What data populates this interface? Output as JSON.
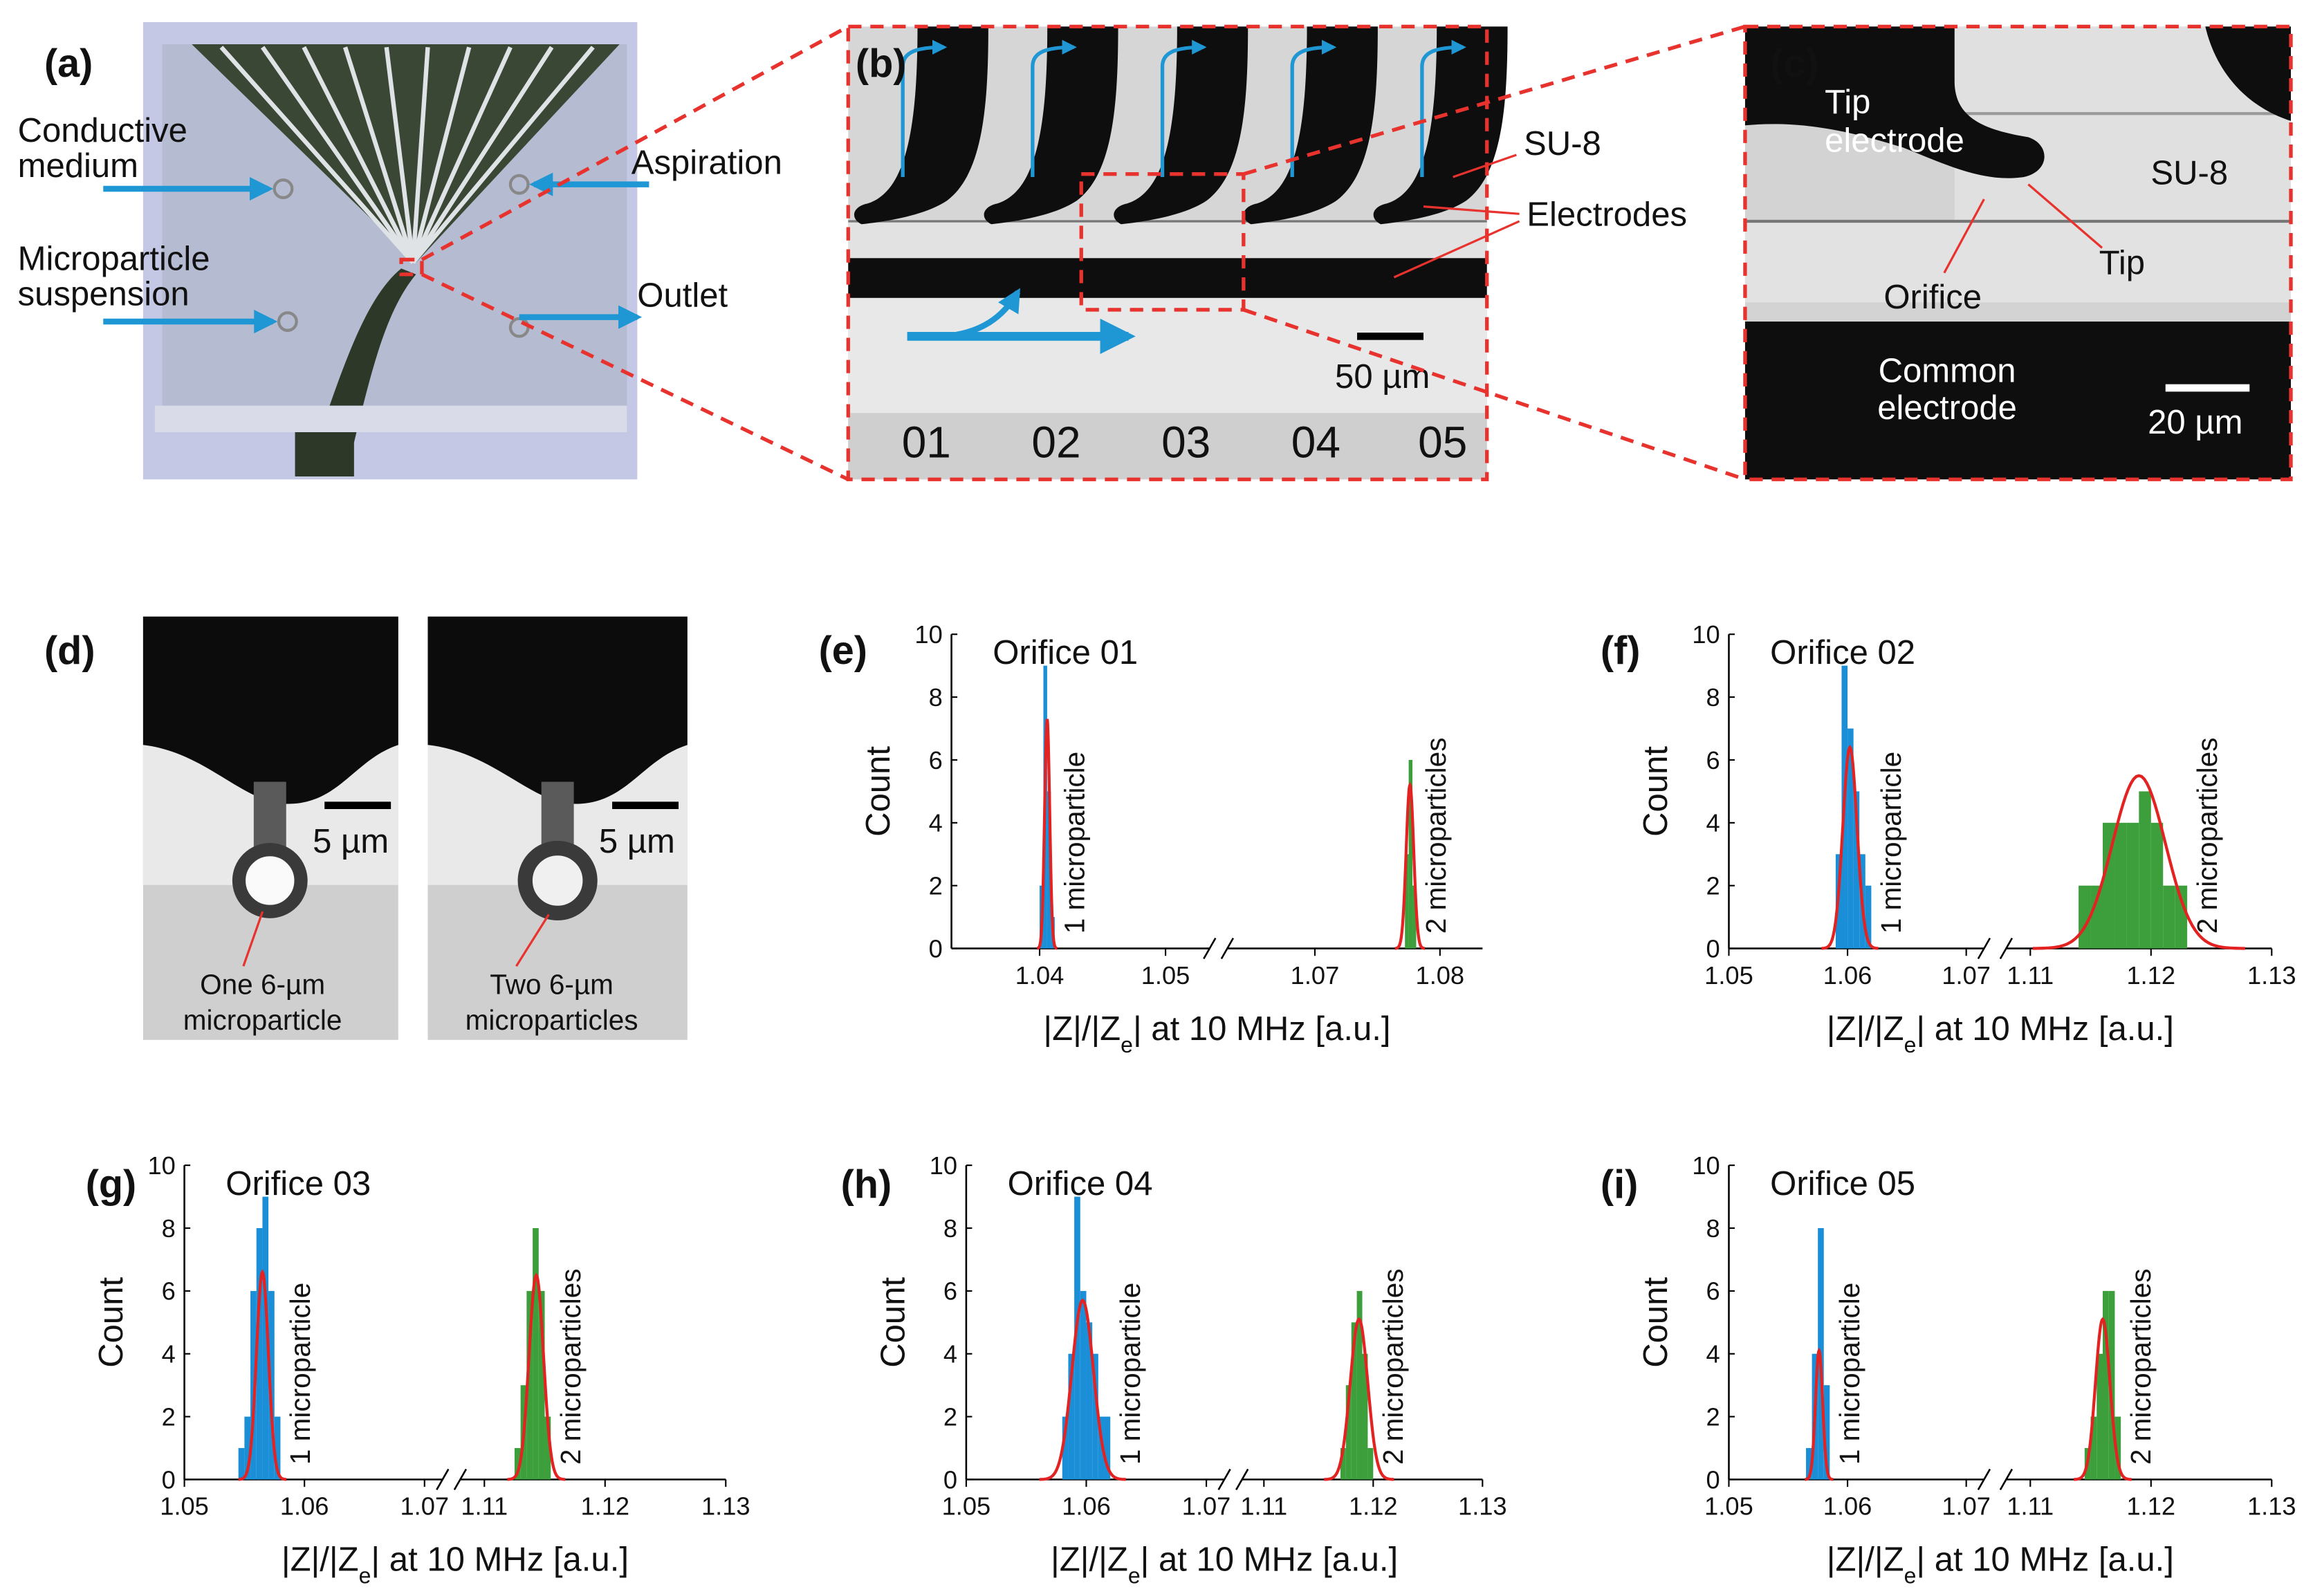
{
  "panels": {
    "a": {
      "label": "(a)",
      "conductive_medium": [
        "Conductive",
        "medium"
      ],
      "aspiration": "Aspiration",
      "microparticle_suspension": [
        "Microparticle",
        "suspension"
      ],
      "outlet": "Outlet"
    },
    "b": {
      "label": "(b)",
      "su8": "SU-8",
      "electrodes": "Electrodes",
      "scale": "50 µm",
      "orifices": [
        "01",
        "02",
        "03",
        "04",
        "05"
      ]
    },
    "c": {
      "label": "(c)",
      "tip_electrode": [
        "Tip",
        "electrode"
      ],
      "su8": "SU-8",
      "tip": "Tip",
      "orifice": "Orifice",
      "common_electrode": [
        "Common",
        "electrode"
      ],
      "scale": "20 µm"
    },
    "d": {
      "label": "(d)",
      "scales": [
        "5 µm",
        "5 µm"
      ],
      "captions": [
        [
          "One 6-µm",
          "microparticle"
        ],
        [
          "Two 6-µm",
          "microparticles"
        ]
      ]
    }
  },
  "chart_data": [
    {
      "type": "histogram",
      "panel_label": "(e)",
      "title": "Orifice 01",
      "y_label": "Count",
      "x_label": [
        "|Z|/|Z",
        "e",
        "| at 10 MHz [a.u.]"
      ],
      "xlim_segments": [
        [
          1.033,
          1.0535
        ],
        [
          1.063,
          1.0834
        ]
      ],
      "xticks": [
        1.04,
        1.05,
        1.07,
        1.08
      ],
      "ylim": [
        0,
        10
      ],
      "yticks": [
        0,
        2,
        4,
        6,
        8,
        10
      ],
      "series": [
        {
          "name": "1 microparticle",
          "color": "#1a8fd8",
          "bins": [
            1.04,
            1.0403,
            1.0406,
            1.0409,
            1.0412
          ],
          "values": [
            2,
            9,
            5,
            1
          ]
        },
        {
          "name": "2 microparticles",
          "color": "#3c9f3c",
          "bins": [
            1.0772,
            1.0775,
            1.0778,
            1.0781
          ],
          "values": [
            3,
            6,
            2
          ]
        }
      ],
      "fits": [
        {
          "color": "#e32222",
          "mean": 1.0406,
          "sd": 0.0002,
          "peak": 7.3
        },
        {
          "color": "#e32222",
          "mean": 1.0776,
          "sd": 0.0003,
          "peak": 5.2
        }
      ]
    },
    {
      "type": "histogram",
      "panel_label": "(f)",
      "title": "Orifice 02",
      "y_label": "Count",
      "x_label": [
        "|Z|/|Z",
        "e",
        "| at 10 MHz [a.u.]"
      ],
      "xlim_segments": [
        [
          1.05,
          1.0715
        ],
        [
          1.108,
          1.13
        ]
      ],
      "xticks": [
        1.05,
        1.06,
        1.07,
        1.11,
        1.12,
        1.13
      ],
      "ylim": [
        0,
        10
      ],
      "yticks": [
        0,
        2,
        4,
        6,
        8,
        10
      ],
      "series": [
        {
          "name": "1 microparticle",
          "color": "#1a8fd8",
          "bins": [
            1.059,
            1.0595,
            1.06,
            1.0605,
            1.061,
            1.0615,
            1.062
          ],
          "values": [
            3,
            9,
            7,
            5,
            3,
            2
          ]
        },
        {
          "name": "2 microparticles",
          "color": "#3c9f3c",
          "bins": [
            1.114,
            1.115,
            1.116,
            1.117,
            1.118,
            1.119,
            1.12,
            1.121,
            1.122,
            1.123
          ],
          "values": [
            2,
            2,
            4,
            4,
            4,
            5,
            4,
            2,
            2
          ]
        }
      ],
      "fits": [
        {
          "color": "#e32222",
          "mean": 1.0602,
          "sd": 0.0006,
          "peak": 6.4
        },
        {
          "color": "#e32222",
          "mean": 1.119,
          "sd": 0.0022,
          "peak": 5.5
        }
      ]
    },
    {
      "type": "histogram",
      "panel_label": "(g)",
      "title": "Orifice 03",
      "y_label": "Count",
      "x_label": [
        "|Z|/|Z",
        "e",
        "| at 10 MHz [a.u.]"
      ],
      "xlim_segments": [
        [
          1.05,
          1.0715
        ],
        [
          1.108,
          1.13
        ]
      ],
      "xticks": [
        1.05,
        1.06,
        1.07,
        1.11,
        1.12,
        1.13
      ],
      "ylim": [
        0,
        10
      ],
      "yticks": [
        0,
        2,
        4,
        6,
        8,
        10
      ],
      "series": [
        {
          "name": "1 microparticle",
          "color": "#1a8fd8",
          "bins": [
            1.0545,
            1.055,
            1.0555,
            1.056,
            1.0565,
            1.057,
            1.0575,
            1.058
          ],
          "values": [
            1,
            2,
            6,
            8,
            9,
            6,
            2
          ]
        },
        {
          "name": "2 microparticles",
          "color": "#3c9f3c",
          "bins": [
            1.1125,
            1.113,
            1.1135,
            1.114,
            1.1145,
            1.115,
            1.1155
          ],
          "values": [
            1,
            3,
            6,
            8,
            6,
            2
          ]
        }
      ],
      "fits": [
        {
          "color": "#e32222",
          "mean": 1.0565,
          "sd": 0.0005,
          "peak": 6.6
        },
        {
          "color": "#e32222",
          "mean": 1.1143,
          "sd": 0.0006,
          "peak": 6.5
        }
      ]
    },
    {
      "type": "histogram",
      "panel_label": "(h)",
      "title": "Orifice 04",
      "y_label": "Count",
      "x_label": [
        "|Z|/|Z",
        "e",
        "| at 10 MHz [a.u.]"
      ],
      "xlim_segments": [
        [
          1.05,
          1.0715
        ],
        [
          1.108,
          1.13
        ]
      ],
      "xticks": [
        1.05,
        1.06,
        1.07,
        1.11,
        1.12,
        1.13
      ],
      "ylim": [
        0,
        10
      ],
      "yticks": [
        0,
        2,
        4,
        6,
        8,
        10
      ],
      "series": [
        {
          "name": "1 microparticle",
          "color": "#1a8fd8",
          "bins": [
            1.058,
            1.0585,
            1.059,
            1.0595,
            1.06,
            1.0605,
            1.061,
            1.0615,
            1.062
          ],
          "values": [
            2,
            4,
            9,
            6,
            5,
            4,
            2,
            2
          ]
        },
        {
          "name": "2 microparticles",
          "color": "#3c9f3c",
          "bins": [
            1.117,
            1.1175,
            1.118,
            1.1185,
            1.119,
            1.1195,
            1.12
          ],
          "values": [
            1,
            3,
            5,
            6,
            4,
            1
          ]
        }
      ],
      "fits": [
        {
          "color": "#e32222",
          "mean": 1.0597,
          "sd": 0.0009,
          "peak": 5.7
        },
        {
          "color": "#e32222",
          "mean": 1.1187,
          "sd": 0.0008,
          "peak": 5.1
        }
      ]
    },
    {
      "type": "histogram",
      "panel_label": "(i)",
      "title": "Orifice 05",
      "y_label": "Count",
      "x_label": [
        "|Z|/|Z",
        "e",
        "| at 10 MHz [a.u.]"
      ],
      "xlim_segments": [
        [
          1.05,
          1.0715
        ],
        [
          1.108,
          1.13
        ]
      ],
      "xticks": [
        1.05,
        1.06,
        1.07,
        1.11,
        1.12,
        1.13
      ],
      "ylim": [
        0,
        10
      ],
      "yticks": [
        0,
        2,
        4,
        6,
        8,
        10
      ],
      "series": [
        {
          "name": "1 microparticle",
          "color": "#1a8fd8",
          "bins": [
            1.0565,
            1.057,
            1.0575,
            1.058,
            1.0585
          ],
          "values": [
            1,
            4,
            8,
            3
          ]
        },
        {
          "name": "2 microparticles",
          "color": "#3c9f3c",
          "bins": [
            1.1145,
            1.115,
            1.1155,
            1.116,
            1.1165,
            1.117,
            1.1175
          ],
          "values": [
            1,
            2,
            4,
            6,
            6,
            2
          ]
        }
      ],
      "fits": [
        {
          "color": "#e32222",
          "mean": 1.0576,
          "sd": 0.0003,
          "peak": 4.1
        },
        {
          "color": "#e32222",
          "mean": 1.116,
          "sd": 0.0006,
          "peak": 5.1
        }
      ]
    }
  ]
}
